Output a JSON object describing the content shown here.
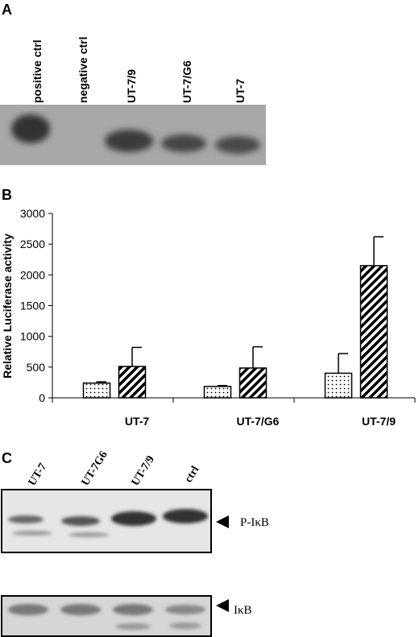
{
  "panels": {
    "A": {
      "label": "A",
      "lanes": [
        "positive ctrl",
        "negative ctrl",
        "UT-7/9",
        "UT-7/G6",
        "UT-7"
      ]
    },
    "C": {
      "label": "C",
      "lanes": [
        "UT-7",
        "UT-7G6",
        "UT-7/9",
        "ctrl"
      ],
      "blots": [
        "P-IκB",
        "IκB"
      ]
    }
  },
  "chart_data": {
    "type": "bar",
    "panel_label": "B",
    "ylabel": "Relative Luciferase activity",
    "categories": [
      "UT-7",
      "UT-7/G6",
      "UT-7/9"
    ],
    "series": [
      {
        "color": "#000000",
        "pattern": "dots",
        "values": [
          240,
          185,
          400
        ],
        "errors": [
          20,
          15,
          320
        ]
      },
      {
        "color": "#000000",
        "pattern": "hatch",
        "values": [
          510,
          485,
          2150
        ],
        "errors": [
          310,
          345,
          470
        ]
      }
    ],
    "ylim": [
      0,
      3000
    ],
    "yticks": [
      0,
      500,
      1000,
      1500,
      2000,
      2500,
      3000
    ],
    "grid": false
  }
}
